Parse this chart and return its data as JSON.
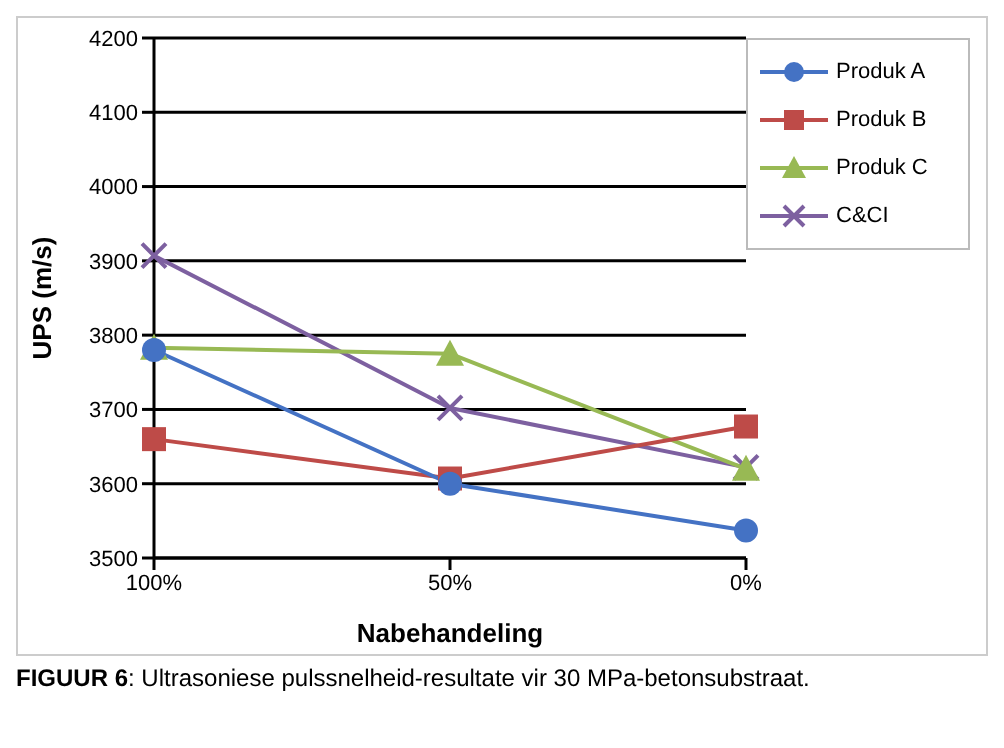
{
  "chart_data": {
    "type": "line",
    "categories": [
      "100%",
      "50%",
      "0%"
    ],
    "xlabel": "Nabehandeling",
    "ylabel": "UPS (m/s)",
    "ylim": [
      3500,
      4200
    ],
    "yticks": [
      3500,
      3600,
      3700,
      3800,
      3900,
      4000,
      4100,
      4200
    ],
    "grid": "y",
    "legend": "top right",
    "annotations": [
      "FIGUUR 6: Ultrasoniese pulssnelheid-resultate vir 30 MPa-betonsubstraat."
    ],
    "series": [
      {
        "name": "Produk A",
        "color": "#4472c4",
        "marker": "circle",
        "values": [
          3780,
          3600,
          3537
        ]
      },
      {
        "name": "Produk B",
        "color": "#be4b48",
        "marker": "square",
        "values": [
          3660,
          3607,
          3677
        ]
      },
      {
        "name": "Produk C",
        "color": "#98b954",
        "marker": "triangle",
        "values": [
          3783,
          3775,
          3620
        ]
      },
      {
        "name": "C&CI",
        "color": "#7d60a0",
        "marker": "cross",
        "values": [
          3907,
          3702,
          3622
        ]
      }
    ]
  }
}
